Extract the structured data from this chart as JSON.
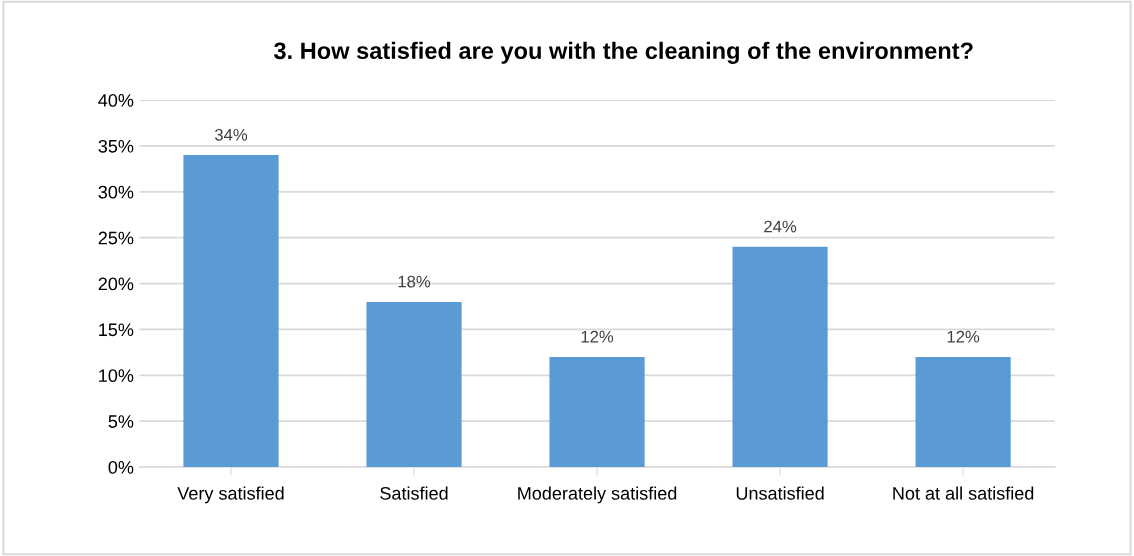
{
  "chart_data": {
    "type": "bar",
    "title": "3. How satisfied are you with the cleaning of the environment?",
    "categories": [
      "Very satisfied",
      "Satisfied",
      "Moderately satisfied",
      "Unsatisfied",
      "Not at all satisfied"
    ],
    "values": [
      34,
      18,
      12,
      24,
      12
    ],
    "color": "#5b9bd5",
    "value_labels": [
      "34%",
      "18%",
      "12%",
      "24%",
      "12%"
    ],
    "ylim": [
      0,
      40
    ],
    "yticks": [
      {
        "value": 0,
        "label": "0%"
      },
      {
        "value": 5,
        "label": "5%"
      },
      {
        "value": 10,
        "label": "10%"
      },
      {
        "value": 15,
        "label": "15%"
      },
      {
        "value": 20,
        "label": "20%"
      },
      {
        "value": 25,
        "label": "25%"
      },
      {
        "value": 30,
        "label": "30%"
      },
      {
        "value": 35,
        "label": "35%"
      },
      {
        "value": 40,
        "label": "40%"
      }
    ],
    "grid": "y",
    "legend": false
  }
}
